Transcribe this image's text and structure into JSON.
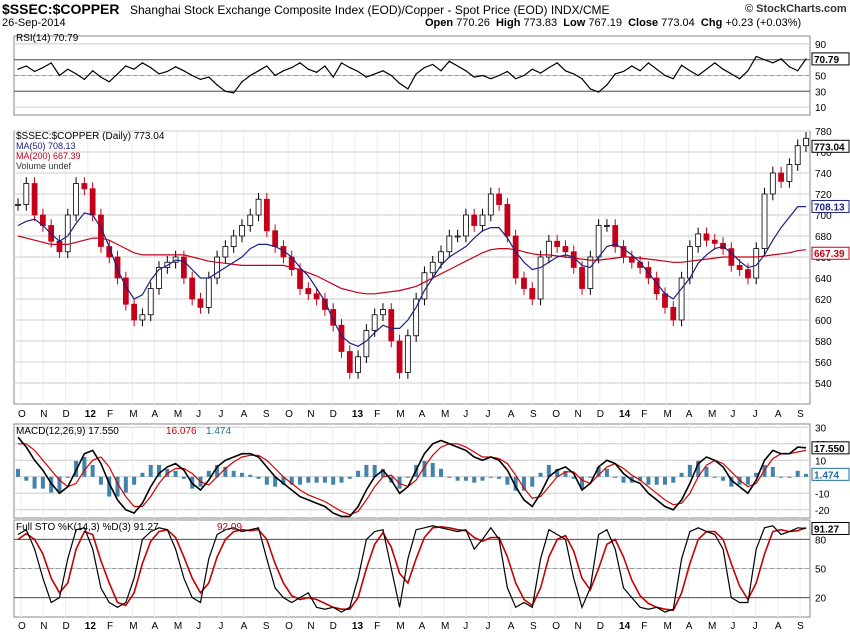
{
  "header": {
    "symbol": "$SSEC:$COPPER",
    "name": "Shanghai Stock Exchange Composite Index (EOD)/Copper - Spot Price (EOD)  INDX/CME",
    "date": "26-Sep-2014",
    "open_label": "Open",
    "open": "770.26",
    "high_label": "High",
    "high": "773.83",
    "low_label": "Low",
    "low": "767.19",
    "close_label": "Close",
    "close": "773.04",
    "chg_label": "Chg",
    "chg": "+0.23 (+0.03%)",
    "brand": "© StockCharts.com"
  },
  "colors": {
    "up": "#000000",
    "down": "#c4001a",
    "ma50": "#1a237e",
    "ma200": "#c4001a",
    "macd": "#000000",
    "signal": "#d50000",
    "hist": "#1f6f9f",
    "sto_k": "#000000",
    "sto_d": "#c40000",
    "rsi_fill": "#777777",
    "grid": "#cccccc"
  },
  "chart_data": [
    {
      "type": "line",
      "panel": "rsi",
      "legend": "RSI(14) 70.79",
      "last_value": "70.79",
      "ylim": [
        0,
        100
      ],
      "ticks": [
        "90",
        "70",
        "50",
        "30",
        "10"
      ],
      "overbought": 70,
      "oversold": 30,
      "values": [
        58,
        62,
        55,
        60,
        66,
        50,
        58,
        52,
        45,
        56,
        48,
        42,
        52,
        62,
        58,
        66,
        60,
        52,
        55,
        61,
        56,
        50,
        45,
        48,
        38,
        30,
        28,
        42,
        50,
        56,
        62,
        50,
        56,
        60,
        66,
        58,
        54,
        62,
        48,
        66,
        60,
        55,
        48,
        52,
        56,
        50,
        40,
        33,
        52,
        60,
        64,
        56,
        68,
        62,
        56,
        48,
        50,
        46,
        50,
        55,
        46,
        50,
        58,
        53,
        60,
        66,
        56,
        52,
        46,
        33,
        29,
        38,
        52,
        55,
        62,
        56,
        66,
        58,
        50,
        46,
        63,
        56,
        50,
        58,
        66,
        58,
        52,
        46,
        56,
        74,
        70,
        66,
        71,
        61,
        56,
        71
      ]
    },
    {
      "type": "ohlc",
      "panel": "price",
      "title": "$SSEC:$COPPER (Daily) 773.04",
      "legend": [
        "MA(50) 708.13",
        "MA(200) 667.39",
        "Volume undef"
      ],
      "last_close": "773.04",
      "ma50_last": "708.13",
      "ma200_last": "667.39",
      "ylim": [
        520,
        780
      ],
      "ticks": [
        "780",
        "760",
        "740",
        "720",
        "700",
        "680",
        "660",
        "640",
        "620",
        "600",
        "580",
        "560",
        "540"
      ],
      "x_labels": [
        "O",
        "N",
        "D",
        "12",
        "F",
        "M",
        "A",
        "M",
        "J",
        "J",
        "A",
        "S",
        "O",
        "N",
        "D",
        "13",
        "F",
        "M",
        "A",
        "M",
        "J",
        "J",
        "A",
        "S",
        "O",
        "N",
        "D",
        "14",
        "F",
        "M",
        "A",
        "M",
        "J",
        "J",
        "A",
        "S"
      ],
      "bold_labels": [
        "12",
        "13",
        "14"
      ],
      "close": [
        710,
        730,
        700,
        690,
        675,
        665,
        700,
        730,
        725,
        700,
        670,
        660,
        640,
        615,
        600,
        605,
        630,
        650,
        655,
        660,
        640,
        620,
        612,
        640,
        660,
        670,
        680,
        690,
        700,
        715,
        685,
        670,
        660,
        648,
        630,
        625,
        620,
        610,
        595,
        570,
        550,
        565,
        590,
        605,
        610,
        580,
        550,
        585,
        620,
        645,
        655,
        665,
        680,
        680,
        700,
        690,
        700,
        720,
        710,
        680,
        640,
        630,
        620,
        660,
        675,
        670,
        665,
        650,
        630,
        660,
        690,
        690,
        670,
        660,
        655,
        650,
        640,
        625,
        612,
        600,
        640,
        670,
        682,
        676,
        673,
        668,
        652,
        648,
        640,
        668,
        720,
        740,
        732,
        748,
        766,
        773
      ],
      "ma50": [
        690,
        694,
        696,
        690,
        682,
        675,
        680,
        692,
        702,
        700,
        688,
        670,
        648,
        632,
        620,
        624,
        638,
        648,
        652,
        657,
        656,
        648,
        640,
        640,
        645,
        650,
        655,
        660,
        668,
        672,
        672,
        670,
        666,
        660,
        650,
        642,
        630,
        618,
        600,
        585,
        578,
        575,
        580,
        588,
        595,
        592,
        592,
        600,
        612,
        628,
        640,
        652,
        660,
        665,
        670,
        678,
        685,
        688,
        688,
        678,
        665,
        655,
        648,
        650,
        655,
        660,
        662,
        660,
        652,
        650,
        660,
        670,
        672,
        668,
        662,
        655,
        645,
        635,
        625,
        620,
        630,
        640,
        654,
        662,
        668,
        670,
        664,
        656,
        650,
        652,
        662,
        676,
        688,
        698,
        708,
        708
      ],
      "ma200": [
        680,
        678,
        676,
        674,
        672,
        672,
        672,
        674,
        676,
        678,
        678,
        676,
        672,
        668,
        664,
        662,
        662,
        662,
        662,
        662,
        662,
        660,
        658,
        656,
        655,
        654,
        653,
        652,
        652,
        652,
        652,
        652,
        652,
        650,
        648,
        645,
        642,
        638,
        634,
        630,
        628,
        626,
        625,
        625,
        626,
        627,
        628,
        630,
        632,
        636,
        640,
        644,
        648,
        652,
        656,
        660,
        664,
        667,
        668,
        668,
        667,
        665,
        663,
        662,
        662,
        661,
        660,
        659,
        658,
        657,
        657,
        658,
        659,
        660,
        660,
        659,
        658,
        657,
        656,
        655,
        655,
        656,
        657,
        658,
        659,
        660,
        660,
        660,
        660,
        660,
        661,
        662,
        663,
        664,
        666,
        667
      ]
    },
    {
      "type": "line",
      "panel": "macd",
      "legend_macd": "MACD(12,26,9) 17.550",
      "legend_signal": "16.076",
      "legend_hist": "1.474",
      "last_macd": "17.550",
      "last_hist": "1.474",
      "ylim": [
        -25,
        32
      ],
      "ticks": [
        "30",
        "20",
        "10",
        "0",
        "-10",
        "-20"
      ],
      "macd": [
        24,
        18,
        10,
        4,
        -4,
        -10,
        -6,
        4,
        14,
        16,
        8,
        -4,
        -14,
        -20,
        -22,
        -16,
        -6,
        2,
        6,
        8,
        4,
        -4,
        -8,
        -2,
        6,
        10,
        12,
        14,
        14,
        12,
        6,
        0,
        -4,
        -8,
        -12,
        -14,
        -16,
        -18,
        -22,
        -24,
        -24,
        -18,
        -8,
        0,
        4,
        -2,
        -10,
        -6,
        4,
        14,
        20,
        22,
        20,
        18,
        16,
        12,
        10,
        12,
        10,
        4,
        -6,
        -14,
        -18,
        -10,
        0,
        4,
        6,
        2,
        -8,
        -4,
        6,
        10,
        8,
        2,
        -2,
        -4,
        -10,
        -14,
        -18,
        -20,
        -14,
        -4,
        8,
        12,
        10,
        6,
        -2,
        -6,
        -10,
        -2,
        10,
        16,
        14,
        14,
        18,
        17.55
      ],
      "signal": [
        20,
        20,
        16,
        10,
        4,
        -2,
        -6,
        -4,
        4,
        10,
        12,
        6,
        -4,
        -12,
        -18,
        -18,
        -12,
        -4,
        2,
        5,
        5,
        2,
        -3,
        -5,
        0,
        5,
        9,
        12,
        13,
        13,
        10,
        5,
        0,
        -4,
        -8,
        -11,
        -13,
        -15,
        -18,
        -21,
        -23,
        -21,
        -14,
        -6,
        0,
        1,
        -4,
        -6,
        -2,
        6,
        13,
        18,
        20,
        20,
        18,
        15,
        12,
        12,
        11,
        8,
        1,
        -7,
        -13,
        -12,
        -6,
        0,
        3,
        3,
        -2,
        -4,
        1,
        6,
        8,
        5,
        1,
        -2,
        -6,
        -10,
        -14,
        -17,
        -16,
        -10,
        0,
        7,
        10,
        8,
        3,
        -2,
        -6,
        -4,
        4,
        11,
        14,
        14,
        15,
        16.08
      ]
    },
    {
      "type": "line",
      "panel": "sto",
      "legend_k": "Full STO %K(14,3) %D(3) 91.27",
      "legend_d": "92.09",
      "last_k": "91.27",
      "ylim": [
        0,
        100
      ],
      "ticks": [
        "80",
        "50",
        "20"
      ],
      "k": [
        85,
        90,
        70,
        40,
        15,
        20,
        60,
        90,
        92,
        70,
        30,
        15,
        10,
        15,
        40,
        80,
        88,
        92,
        90,
        70,
        40,
        20,
        15,
        60,
        85,
        90,
        92,
        88,
        90,
        92,
        60,
        30,
        20,
        15,
        20,
        25,
        10,
        8,
        10,
        5,
        10,
        40,
        80,
        88,
        90,
        50,
        10,
        60,
        90,
        92,
        94,
        92,
        90,
        88,
        90,
        70,
        80,
        92,
        80,
        30,
        10,
        15,
        10,
        60,
        90,
        85,
        80,
        40,
        10,
        30,
        85,
        90,
        70,
        30,
        20,
        10,
        8,
        10,
        5,
        8,
        60,
        88,
        92,
        88,
        85,
        70,
        20,
        15,
        15,
        70,
        92,
        94,
        85,
        88,
        92,
        91.27
      ],
      "d": [
        80,
        86,
        80,
        65,
        40,
        25,
        35,
        70,
        88,
        85,
        58,
        35,
        15,
        12,
        25,
        55,
        78,
        88,
        90,
        82,
        62,
        40,
        25,
        35,
        62,
        80,
        88,
        90,
        89,
        90,
        80,
        55,
        35,
        22,
        18,
        20,
        18,
        14,
        10,
        8,
        8,
        20,
        50,
        75,
        87,
        72,
        45,
        35,
        60,
        82,
        92,
        93,
        92,
        90,
        89,
        82,
        78,
        82,
        82,
        62,
        35,
        18,
        12,
        30,
        62,
        80,
        84,
        68,
        40,
        28,
        50,
        75,
        80,
        62,
        38,
        22,
        14,
        10,
        8,
        7,
        25,
        55,
        80,
        88,
        88,
        80,
        55,
        32,
        18,
        35,
        65,
        88,
        90,
        88,
        89,
        92.09
      ]
    }
  ]
}
